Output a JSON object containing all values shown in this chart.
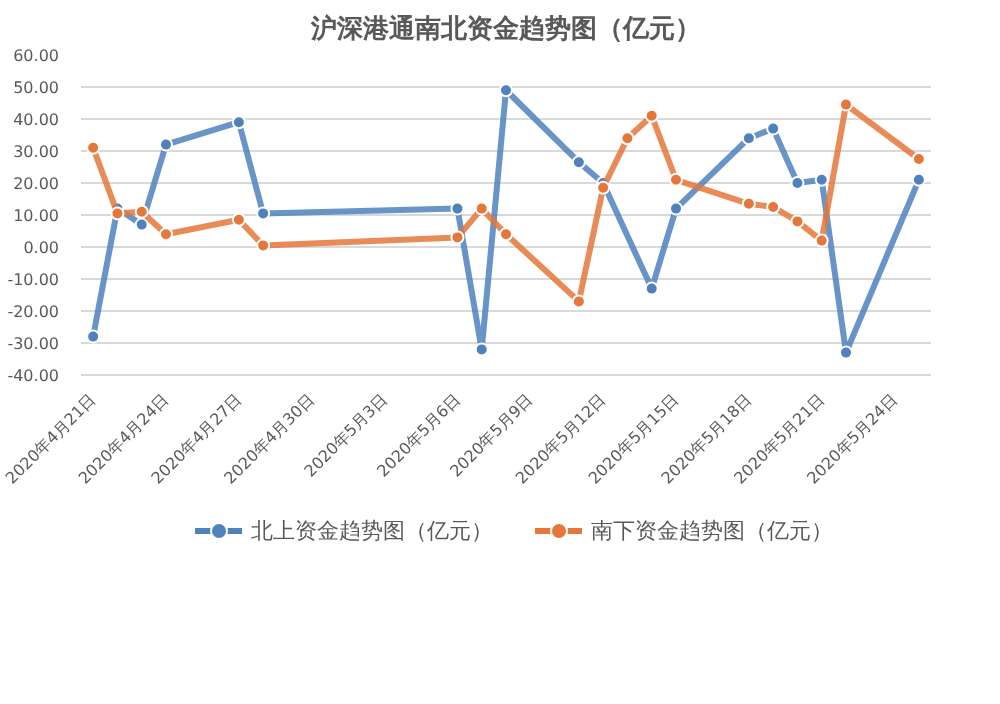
{
  "chart_data": {
    "type": "line",
    "title": "沪深港通南北资金趋势图（亿元）",
    "x": [
      "2020-04-21",
      "2020-04-22",
      "2020-04-23",
      "2020-04-24",
      "2020-04-27",
      "2020-04-28",
      "2020-05-06",
      "2020-05-07",
      "2020-05-08",
      "2020-05-11",
      "2020-05-12",
      "2020-05-13",
      "2020-05-14",
      "2020-05-15",
      "2020-05-18",
      "2020-05-19",
      "2020-05-20",
      "2020-05-21",
      "2020-05-22",
      "2020-05-25"
    ],
    "series": [
      {
        "name": "北上资金趋势图（亿元）",
        "color": "#4f81bd",
        "values": [
          -28,
          12,
          7,
          32,
          39,
          10.5,
          12,
          -32,
          49,
          26.5,
          20,
          null,
          -13,
          12,
          34,
          37,
          20,
          21,
          -33,
          21
        ]
      },
      {
        "name": "南下资金趋势图（亿元）",
        "color": "#e5773a",
        "values": [
          31,
          10.5,
          11,
          4,
          8.5,
          0.5,
          3,
          12,
          4,
          -17,
          18.5,
          34,
          41,
          21,
          13.5,
          12.5,
          8,
          2,
          44.5,
          27.5
        ]
      }
    ],
    "xlim": [
      "2020-04-20T12:00",
      "2020-05-25T12:00"
    ],
    "xticks": [
      {
        "value": "2020-04-21",
        "label": "2020年4月21日"
      },
      {
        "value": "2020-04-24",
        "label": "2020年4月24日"
      },
      {
        "value": "2020-04-27",
        "label": "2020年4月27日"
      },
      {
        "value": "2020-04-30",
        "label": "2020年4月30日"
      },
      {
        "value": "2020-05-03",
        "label": "2020年5月3日"
      },
      {
        "value": "2020-05-06",
        "label": "2020年5月6日"
      },
      {
        "value": "2020-05-09",
        "label": "2020年5月9日"
      },
      {
        "value": "2020-05-12",
        "label": "2020年5月12日"
      },
      {
        "value": "2020-05-15",
        "label": "2020年5月15日"
      },
      {
        "value": "2020-05-18",
        "label": "2020年5月18日"
      },
      {
        "value": "2020-05-21",
        "label": "2020年5月21日"
      },
      {
        "value": "2020-05-24",
        "label": "2020年5月24日"
      }
    ],
    "ylim": [
      -40,
      60
    ],
    "yticks": [
      {
        "value": -40,
        "label": "-40.00"
      },
      {
        "value": -30,
        "label": "-30.00"
      },
      {
        "value": -20,
        "label": "-20.00"
      },
      {
        "value": -10,
        "label": "-10.00"
      },
      {
        "value": 0,
        "label": "0.00"
      },
      {
        "value": 10,
        "label": "10.00"
      },
      {
        "value": 20,
        "label": "20.00"
      },
      {
        "value": 30,
        "label": "30.00"
      },
      {
        "value": 40,
        "label": "40.00"
      },
      {
        "value": 50,
        "label": "50.00"
      },
      {
        "value": 60,
        "label": "60.00"
      }
    ],
    "grid": "y",
    "legend": "bottom",
    "marker": "circle",
    "line_style": "solid"
  }
}
